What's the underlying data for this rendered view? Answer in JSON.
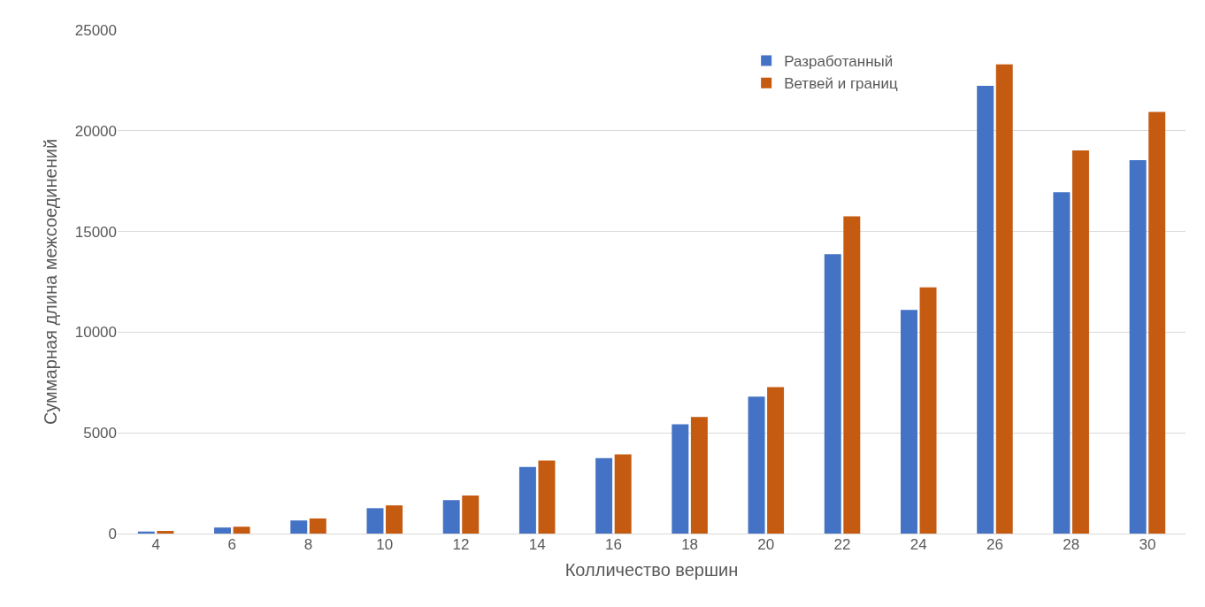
{
  "chart_data": {
    "type": "bar",
    "xlabel": "Колличество вершин",
    "ylabel": "Суммарная длина межсоединений",
    "categories": [
      "4",
      "6",
      "8",
      "10",
      "12",
      "14",
      "16",
      "18",
      "20",
      "22",
      "24",
      "26",
      "28",
      "30"
    ],
    "series": [
      {
        "name": "Разработанный",
        "color": "#4472c4",
        "values": [
          100,
          300,
          650,
          1260,
          1660,
          3310,
          3750,
          5430,
          6800,
          13870,
          11100,
          22230,
          16950,
          18540
        ]
      },
      {
        "name": "Ветвей и границ",
        "color": "#c55a11",
        "values": [
          130,
          340,
          750,
          1400,
          1890,
          3630,
          3930,
          5790,
          7270,
          15750,
          12230,
          23300,
          19030,
          20940
        ]
      }
    ],
    "ylim": [
      0,
      25000
    ],
    "yticks": [
      0,
      5000,
      10000,
      15000,
      20000,
      25000
    ],
    "grid": "y",
    "legend": "top right"
  }
}
